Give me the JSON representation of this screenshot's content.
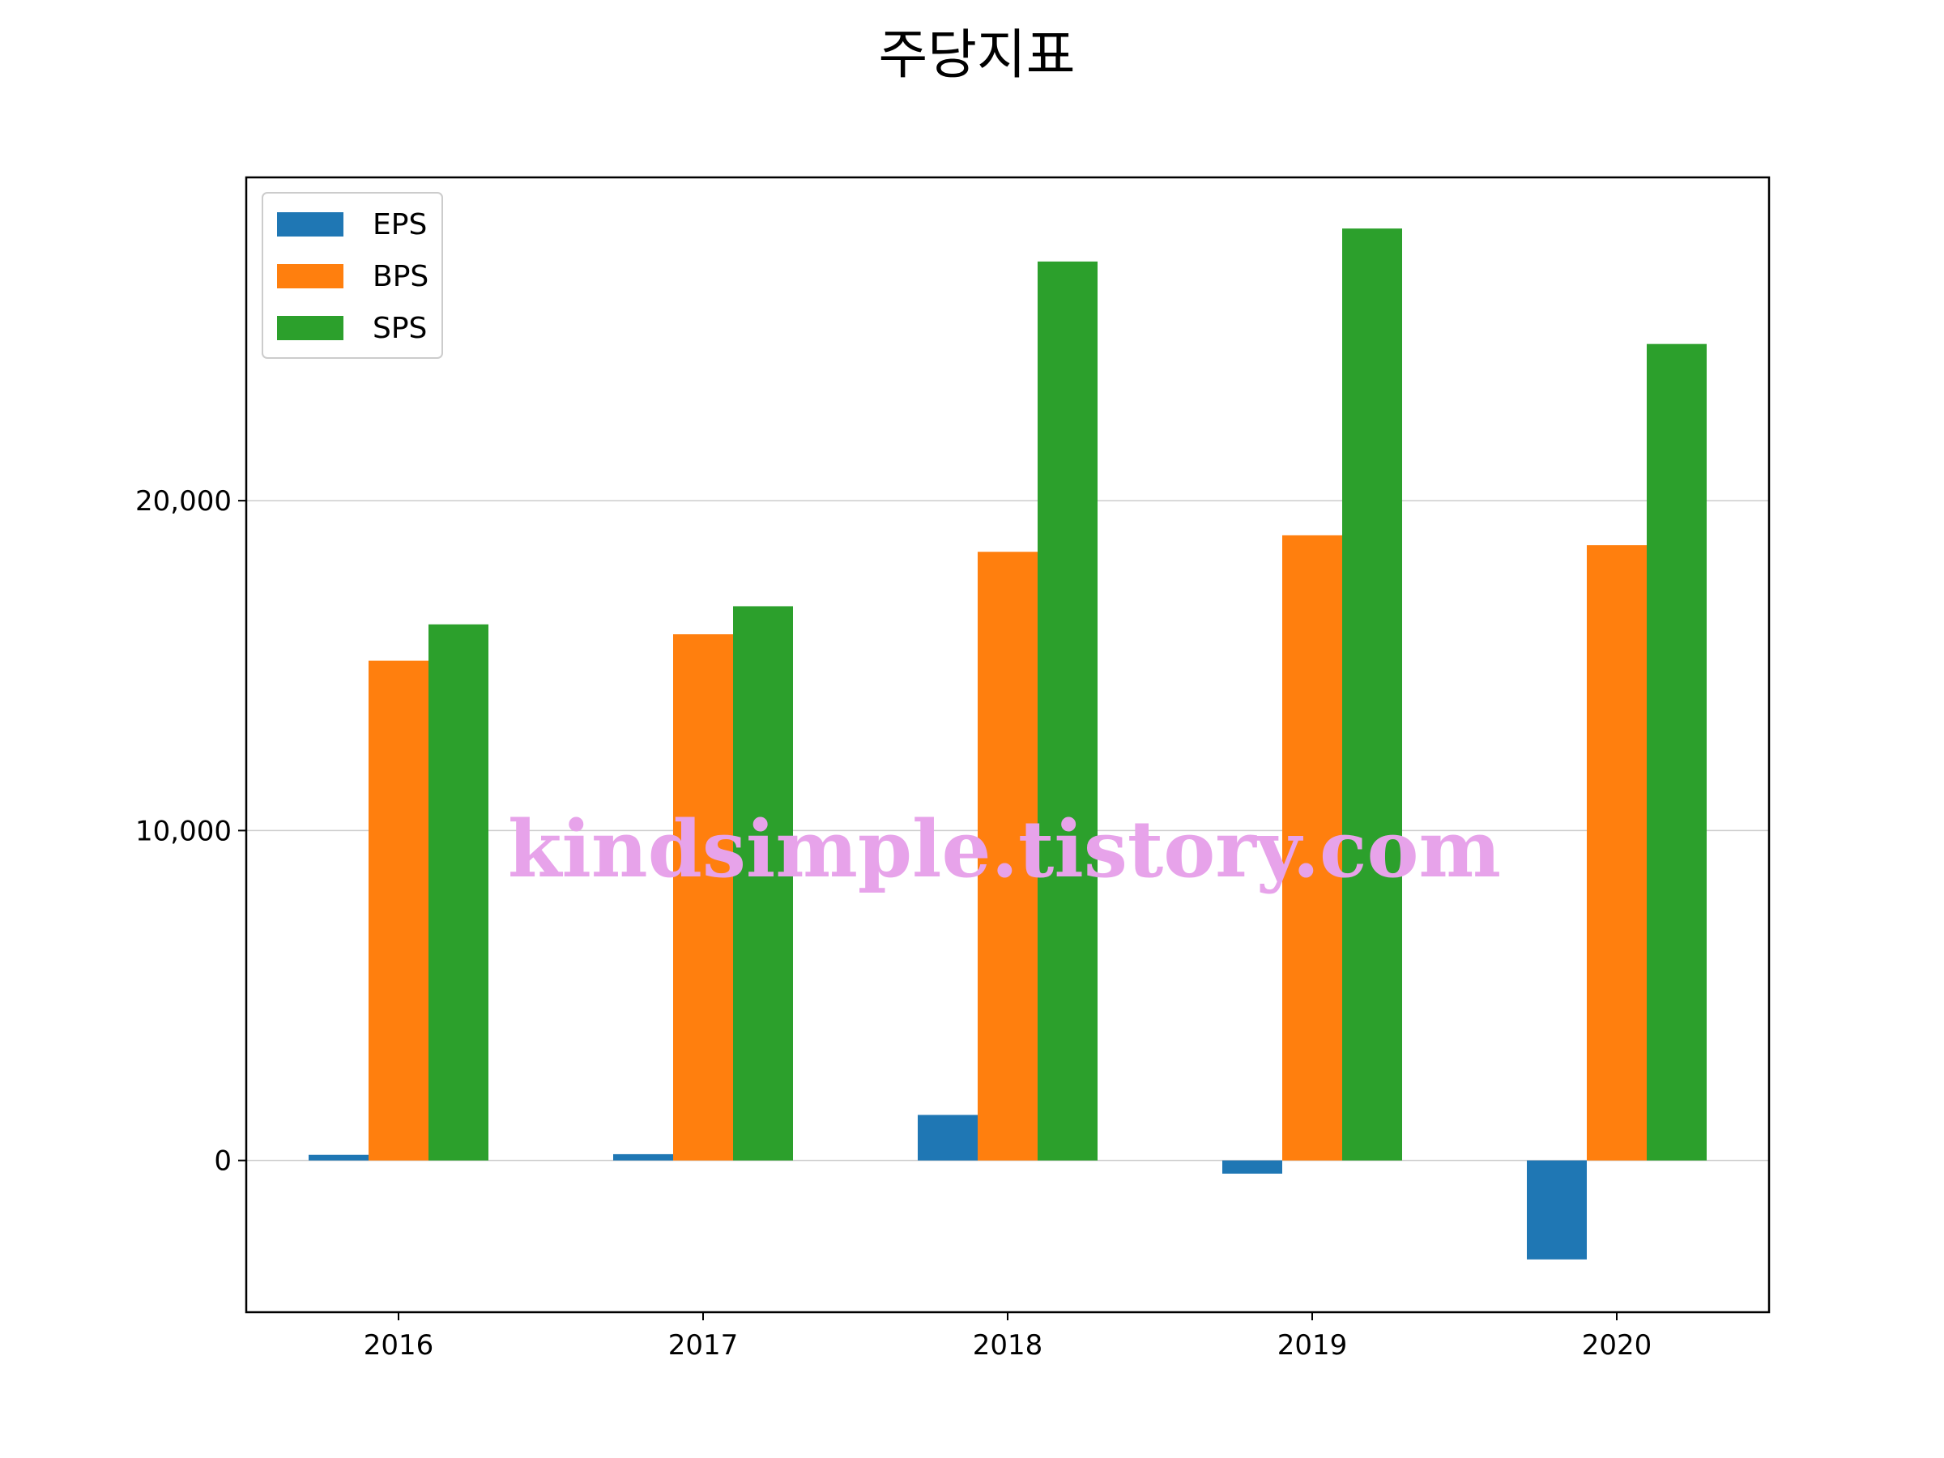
{
  "chart_data": {
    "type": "bar",
    "title": "주당지표",
    "xlabel": "",
    "ylabel": "",
    "categories": [
      "2016",
      "2017",
      "2018",
      "2019",
      "2020"
    ],
    "series": [
      {
        "name": "EPS",
        "color": "#1f77b4",
        "values": [
          170,
          190,
          1380,
          -400,
          -3000
        ]
      },
      {
        "name": "BPS",
        "color": "#ff7f0e",
        "values": [
          15150,
          15950,
          18450,
          18950,
          18650
        ]
      },
      {
        "name": "SPS",
        "color": "#2ca02c",
        "values": [
          16250,
          16800,
          27250,
          28250,
          24750
        ]
      }
    ],
    "ylim": [
      -4600,
      29800
    ],
    "yticks": [
      0,
      10000,
      20000
    ],
    "ytick_labels": [
      "0",
      "10,000",
      "20,000"
    ],
    "grid": "y",
    "legend_position": "upper-left"
  },
  "watermark": "kindsimple.tistory.com"
}
